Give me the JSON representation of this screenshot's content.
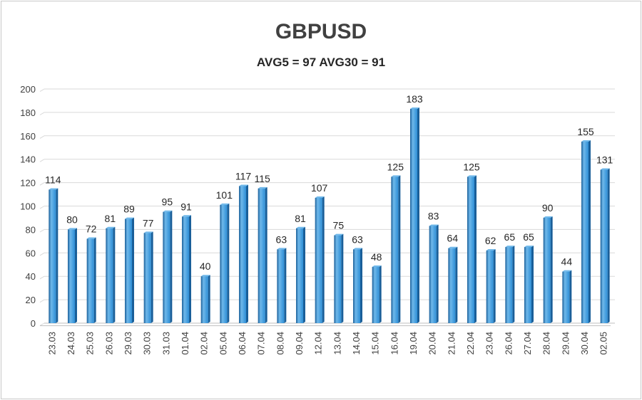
{
  "chart_data": {
    "type": "bar",
    "title": "GBPUSD",
    "subtitle": "AVG5 = 97 AVG30 = 91",
    "categories": [
      "23.03",
      "24.03",
      "25.03",
      "26.03",
      "29.03",
      "30.03",
      "31.03",
      "01.04",
      "02.04",
      "05.04",
      "06.04",
      "07.04",
      "08.04",
      "09.04",
      "12.04",
      "13.04",
      "14.04",
      "15.04",
      "16.04",
      "19.04",
      "20.04",
      "21.04",
      "22.04",
      "23.04",
      "26.04",
      "27.04",
      "28.04",
      "29.04",
      "30.04",
      "02.05"
    ],
    "values": [
      114,
      80,
      72,
      81,
      89,
      77,
      95,
      91,
      40,
      101,
      117,
      115,
      63,
      81,
      107,
      75,
      63,
      48,
      125,
      183,
      83,
      64,
      125,
      62,
      65,
      65,
      90,
      44,
      155,
      131
    ],
    "ylim": [
      0,
      200
    ],
    "yticks": [
      0,
      20,
      40,
      60,
      80,
      100,
      120,
      140,
      160,
      180,
      200
    ],
    "grid": true,
    "legend": "none",
    "colors": {
      "bar": "#2e8fd6",
      "bar_dark": "#1a5f99",
      "bar_light": "#6fb8ea",
      "grid": "#d9d9d9",
      "text": "#404040"
    }
  }
}
